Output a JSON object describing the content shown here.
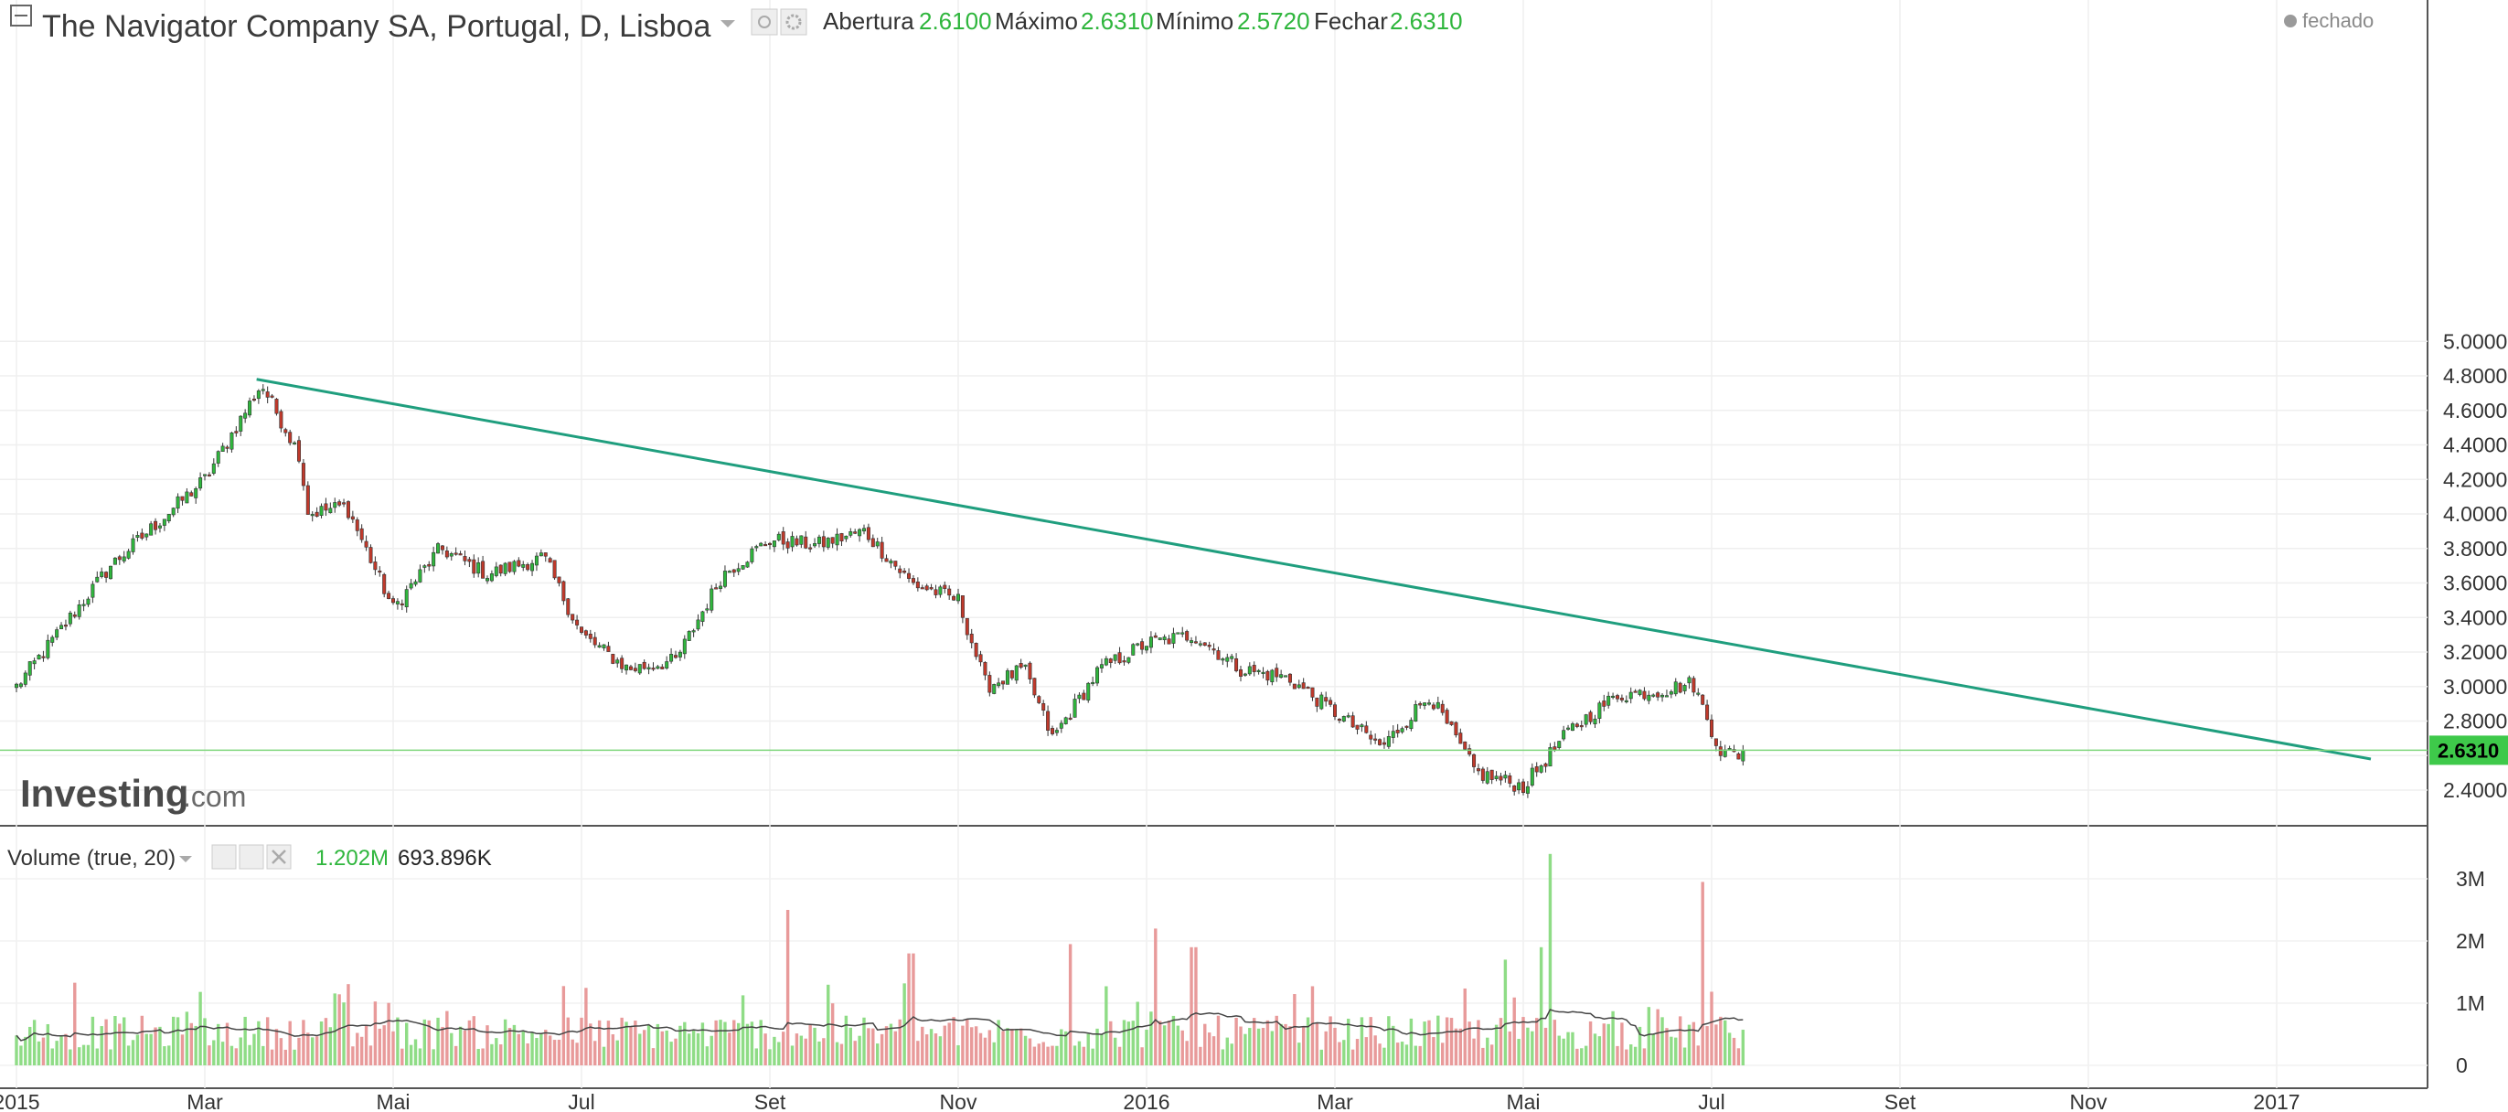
{
  "header": {
    "title": "The Navigator Company SA, Portugal, D, Lisboa",
    "open_label": "Abertura",
    "open_value": "2.6100",
    "high_label": "Máximo",
    "high_value": "2.6310",
    "low_label": "Mínimo",
    "low_value": "2.5720",
    "close_label": "Fechar",
    "close_value": "2.6310",
    "status": "fechado"
  },
  "watermark": {
    "brand": "Investing",
    "suffix": ".com"
  },
  "volume_panel": {
    "label": "Volume (true, 20)",
    "value1": "1.202M",
    "value2": "693.896K",
    "ticks": [
      "3M",
      "2M",
      "1M",
      "0"
    ]
  },
  "price_axis_ticks": [
    "5.0000",
    "4.8000",
    "4.6000",
    "4.4000",
    "4.2000",
    "4.0000",
    "3.8000",
    "3.6000",
    "3.4000",
    "3.2000",
    "3.0000",
    "2.8000",
    "2.6000",
    "2.4000"
  ],
  "last_price_tag": "2.6310",
  "x_axis_ticks": [
    "2015",
    "Mar",
    "Mai",
    "Jul",
    "Set",
    "Nov",
    "2016",
    "Mar",
    "Mai",
    "Jul",
    "Set",
    "Nov",
    "2017"
  ],
  "colors": {
    "up": "#2fb63d",
    "down": "#c0392b",
    "trendline": "#1f9e7e",
    "vol_up": "#8fdc86",
    "vol_down": "#e89a9a"
  },
  "chart_data": [
    {
      "type": "candlestick",
      "x_unit": "month",
      "x_domain": [
        0,
        26
      ],
      "ylim": [
        2.3,
        5.0
      ],
      "anchors_close": [
        [
          0,
          3.0
        ],
        [
          1,
          3.7
        ],
        [
          2.0,
          4.2
        ],
        [
          2.6,
          4.75
        ],
        [
          3.0,
          4.35
        ],
        [
          3.1,
          4.0
        ],
        [
          3.5,
          4.05
        ],
        [
          4.0,
          3.45
        ],
        [
          4.5,
          3.8
        ],
        [
          5.0,
          3.65
        ],
        [
          5.6,
          3.75
        ],
        [
          6.0,
          3.3
        ],
        [
          6.5,
          3.1
        ],
        [
          7.0,
          3.15
        ],
        [
          7.5,
          3.65
        ],
        [
          8.0,
          3.85
        ],
        [
          8.5,
          3.82
        ],
        [
          9.0,
          3.9
        ],
        [
          9.5,
          3.6
        ],
        [
          10.0,
          3.5
        ],
        [
          10.3,
          3.0
        ],
        [
          10.7,
          3.1
        ],
        [
          11.0,
          2.7
        ],
        [
          11.5,
          3.1
        ],
        [
          12.0,
          3.25
        ],
        [
          12.5,
          3.3
        ],
        [
          13.0,
          3.1
        ],
        [
          13.5,
          3.05
        ],
        [
          14.0,
          2.85
        ],
        [
          14.5,
          2.65
        ],
        [
          15.0,
          2.95
        ],
        [
          15.5,
          2.5
        ],
        [
          16.0,
          2.42
        ],
        [
          16.5,
          2.75
        ],
        [
          17.0,
          2.95
        ],
        [
          17.5,
          2.98
        ],
        [
          17.8,
          3.02
        ],
        [
          18.1,
          2.62
        ],
        [
          18.35,
          2.6
        ]
      ],
      "trendline": {
        "from": [
          2.55,
          4.78
        ],
        "to": [
          25.0,
          2.58
        ]
      },
      "last_price": 2.631
    },
    {
      "type": "bar",
      "name": "Volume (true, 20)",
      "ylim": [
        0,
        3500000
      ],
      "sma_period": 20,
      "spikes": [
        [
          8.2,
          2.5
        ],
        [
          12.1,
          2.2
        ],
        [
          16.3,
          3.4
        ],
        [
          17.9,
          2.95
        ],
        [
          12.5,
          1.9
        ],
        [
          9.5,
          1.8
        ],
        [
          11.2,
          1.95
        ],
        [
          15.8,
          1.7
        ],
        [
          16.2,
          1.9
        ]
      ]
    }
  ]
}
